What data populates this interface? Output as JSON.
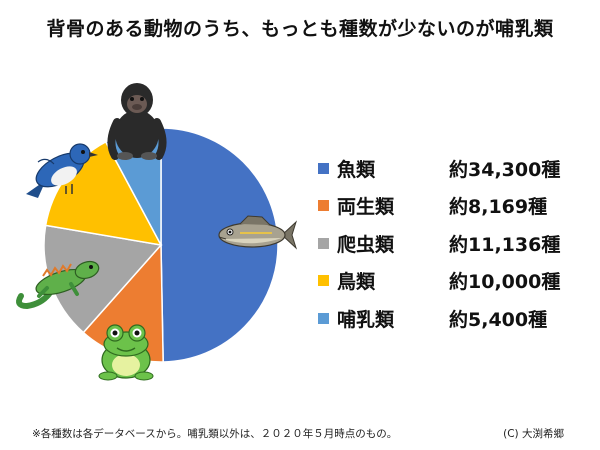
{
  "title": "背骨のある動物のうち、もっとも種数が少ないのが哺乳類",
  "chart_data": {
    "type": "pie",
    "start_angle_deg": 0,
    "direction": "clockwise",
    "categories": [
      "魚類",
      "両生類",
      "爬虫類",
      "鳥類",
      "哺乳類"
    ],
    "values": [
      34300,
      8169,
      11136,
      10000,
      5400
    ],
    "value_labels": [
      "約34,300種",
      "約8,169種",
      "約11,136種",
      "約10,000種",
      "約5,400種"
    ],
    "colors": [
      "#4472C4",
      "#ED7D31",
      "#A5A5A5",
      "#FFC000",
      "#5B9BD5"
    ],
    "legend_position": "right",
    "slice_icons": [
      "fish-icon",
      "frog-icon",
      "lizard-icon",
      "bird-icon",
      "gorilla-icon"
    ]
  },
  "footnote": "※各種数は各データベースから。哺乳類以外は、２０２０年５月時点のもの。",
  "credit": "(C)  大渕希郷"
}
